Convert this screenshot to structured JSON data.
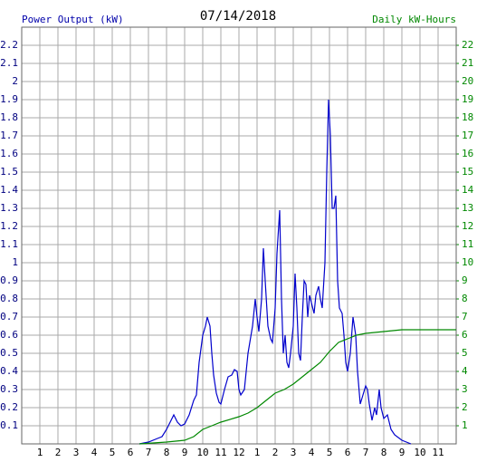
{
  "chart_data": {
    "type": "line",
    "title": "07/14/2018",
    "ylabel": "Power Output (kW)",
    "y2label": "Daily kW-Hours",
    "xlim": [
      0,
      24
    ],
    "xticks": [
      1,
      2,
      3,
      4,
      5,
      6,
      7,
      8,
      9,
      10,
      11,
      12,
      {
        "value": 13,
        "label": "1"
      },
      {
        "value": 14,
        "label": "2"
      },
      {
        "value": 15,
        "label": "3"
      },
      {
        "value": 16,
        "label": "4"
      },
      {
        "value": 17,
        "label": "5"
      },
      {
        "value": 18,
        "label": "6"
      },
      {
        "value": 19,
        "label": "7"
      },
      {
        "value": 20,
        "label": "8"
      },
      {
        "value": 21,
        "label": "9"
      },
      {
        "value": 22,
        "label": "10"
      },
      {
        "value": 23,
        "label": "11"
      }
    ],
    "ylim": [
      0,
      2.3
    ],
    "yticks": [
      0.1,
      0.2,
      0.3,
      0.4,
      0.5,
      0.6,
      0.7,
      0.8,
      0.9,
      1.0,
      1.1,
      1.2,
      1.3,
      1.4,
      1.5,
      1.6,
      1.7,
      1.8,
      1.9,
      2.0,
      2.1,
      2.2
    ],
    "y2lim": [
      0,
      23
    ],
    "y2ticks": [
      1,
      2,
      3,
      4,
      5,
      6,
      7,
      8,
      9,
      10,
      11,
      12,
      13,
      14,
      15,
      16,
      17,
      18,
      19,
      20,
      21,
      22
    ],
    "grid": true,
    "series": [
      {
        "color": "#0000cc",
        "x": [
          6.5,
          7.0,
          7.5,
          7.75,
          8.0,
          8.25,
          8.4,
          8.6,
          8.8,
          9.0,
          9.25,
          9.5,
          9.65,
          9.8,
          10.0,
          10.15,
          10.25,
          10.4,
          10.5,
          10.6,
          10.75,
          10.9,
          11.0,
          11.2,
          11.4,
          11.6,
          11.75,
          11.9,
          12.0,
          12.1,
          12.3,
          12.5,
          12.75,
          12.9,
          13.0,
          13.1,
          13.25,
          13.35,
          13.45,
          13.6,
          13.75,
          13.85,
          14.0,
          14.1,
          14.25,
          14.35,
          14.45,
          14.55,
          14.65,
          14.75,
          14.85,
          15.0,
          15.1,
          15.2,
          15.3,
          15.4,
          15.5,
          15.6,
          15.7,
          15.8,
          15.9,
          16.0,
          16.15,
          16.25,
          16.4,
          16.5,
          16.6,
          16.75,
          16.85,
          16.95,
          17.05,
          17.15,
          17.25,
          17.35,
          17.45,
          17.55,
          17.7,
          17.8,
          17.9,
          18.0,
          18.15,
          18.3,
          18.45,
          18.55,
          18.7,
          18.85,
          19.0,
          19.1,
          19.2,
          19.35,
          19.5,
          19.6,
          19.75,
          19.85,
          20.0,
          20.2,
          20.4,
          20.6,
          21.0,
          21.5
        ],
        "values": [
          0,
          0.01,
          0.03,
          0.04,
          0.08,
          0.13,
          0.16,
          0.12,
          0.1,
          0.11,
          0.16,
          0.24,
          0.27,
          0.45,
          0.6,
          0.65,
          0.7,
          0.65,
          0.5,
          0.38,
          0.28,
          0.23,
          0.22,
          0.3,
          0.37,
          0.38,
          0.41,
          0.4,
          0.3,
          0.27,
          0.3,
          0.5,
          0.65,
          0.8,
          0.7,
          0.62,
          0.8,
          1.08,
          0.9,
          0.65,
          0.58,
          0.56,
          0.75,
          1.05,
          1.29,
          0.8,
          0.5,
          0.6,
          0.45,
          0.42,
          0.5,
          0.65,
          0.94,
          0.75,
          0.5,
          0.46,
          0.7,
          0.9,
          0.88,
          0.7,
          0.82,
          0.78,
          0.72,
          0.82,
          0.87,
          0.8,
          0.75,
          1.0,
          1.5,
          1.9,
          1.7,
          1.3,
          1.3,
          1.37,
          0.9,
          0.75,
          0.72,
          0.6,
          0.45,
          0.4,
          0.5,
          0.7,
          0.6,
          0.4,
          0.22,
          0.27,
          0.32,
          0.3,
          0.22,
          0.13,
          0.2,
          0.16,
          0.3,
          0.2,
          0.14,
          0.16,
          0.08,
          0.05,
          0.02,
          0
        ]
      },
      {
        "color": "#008800",
        "axis": "y2",
        "x": [
          6.5,
          8.0,
          9.0,
          9.5,
          10.0,
          10.5,
          11.0,
          12.0,
          12.5,
          13.0,
          13.5,
          14.0,
          14.5,
          15.0,
          15.5,
          16.0,
          16.5,
          17.0,
          17.5,
          18.0,
          18.5,
          19.0,
          20.0,
          21.0,
          22.0,
          24.0
        ],
        "values": [
          0,
          0.1,
          0.2,
          0.4,
          0.8,
          1.0,
          1.2,
          1.5,
          1.7,
          2.0,
          2.4,
          2.8,
          3.0,
          3.3,
          3.7,
          4.1,
          4.5,
          5.1,
          5.6,
          5.8,
          6.0,
          6.1,
          6.2,
          6.3,
          6.3,
          6.3
        ]
      }
    ]
  }
}
